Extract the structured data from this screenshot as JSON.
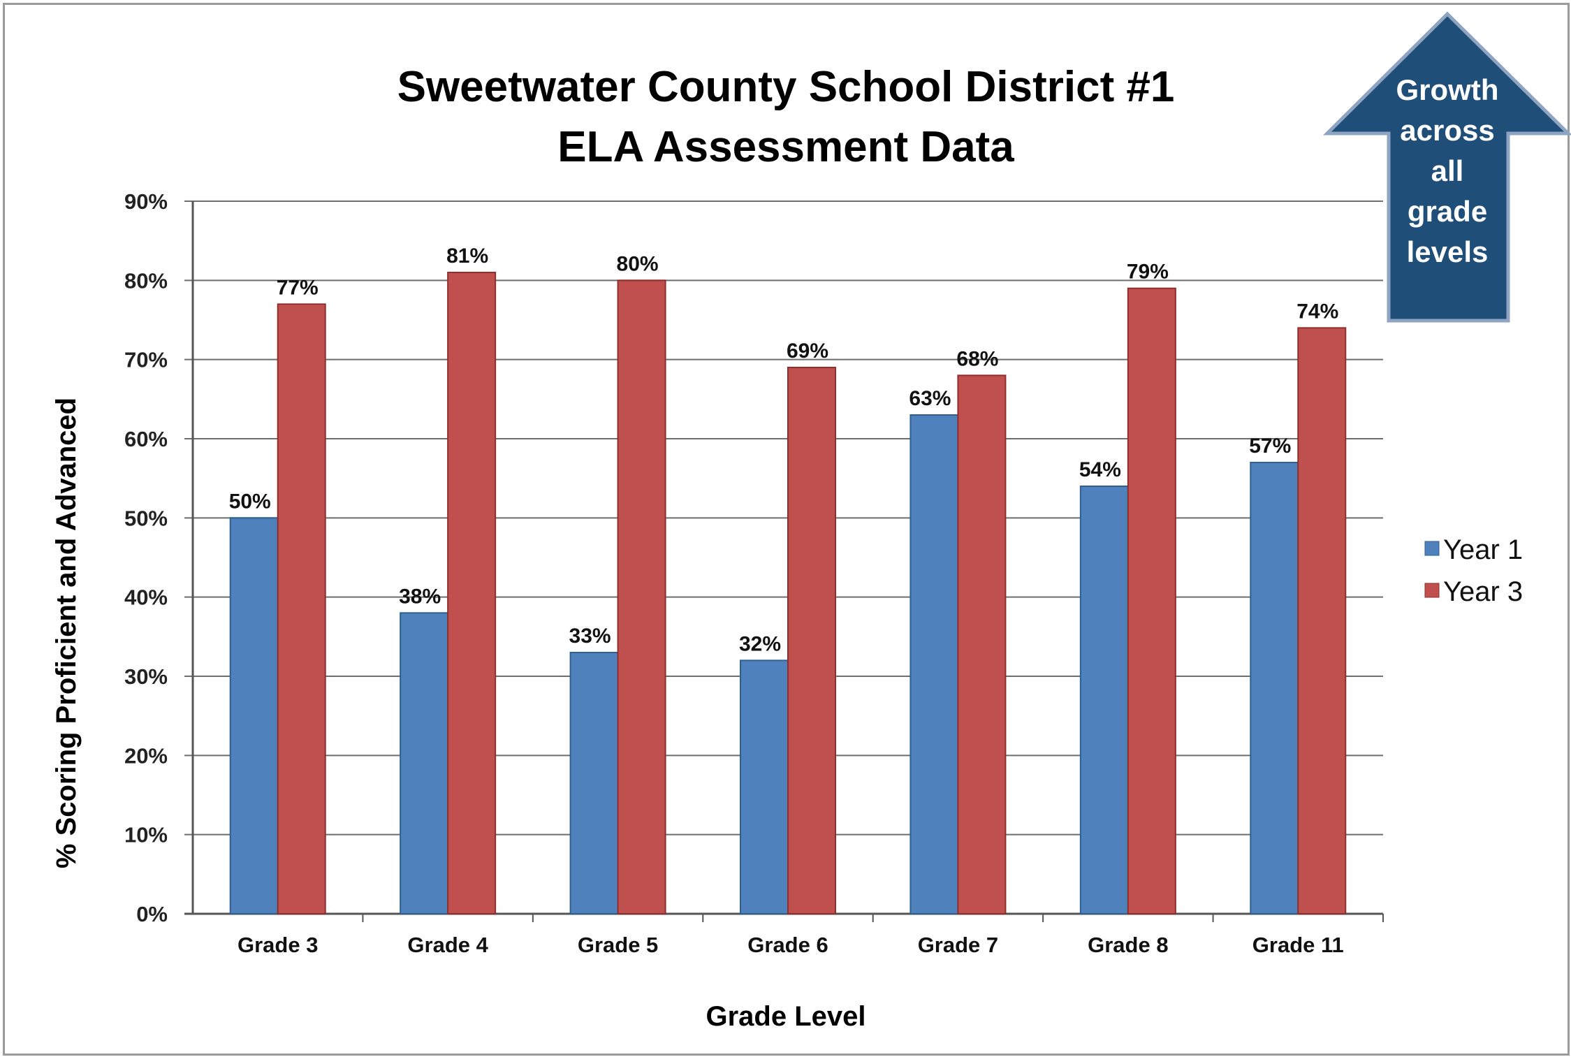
{
  "chart_data": {
    "type": "bar",
    "title_lines": [
      "Sweetwater County School District #1",
      "ELA Assessment Data"
    ],
    "categories": [
      "Grade 3",
      "Grade 4",
      "Grade 5",
      "Grade 6",
      "Grade 7",
      "Grade 8",
      "Grade 11"
    ],
    "series": [
      {
        "name": "Year 1",
        "values": [
          50,
          38,
          33,
          32,
          63,
          54,
          57
        ],
        "labels": [
          "50%",
          "38%",
          "33%",
          "32%",
          "63%",
          "54%",
          "57%"
        ],
        "color": "#4f81bd"
      },
      {
        "name": "Year 3",
        "values": [
          77,
          81,
          80,
          69,
          68,
          79,
          74
        ],
        "labels": [
          "77%",
          "81%",
          "80%",
          "69%",
          "68%",
          "79%",
          "74%"
        ],
        "color": "#c0504d"
      }
    ],
    "xlabel": "Grade Level",
    "ylabel": "% Scoring Proficient and Advanced",
    "ylim": [
      0,
      90
    ],
    "yticks": [
      "0%",
      "10%",
      "20%",
      "30%",
      "40%",
      "50%",
      "60%",
      "70%",
      "80%",
      "90%"
    ],
    "grid": true,
    "legend_position": "right",
    "annotation": {
      "lines": [
        "Growth",
        "across",
        "all",
        "grade",
        "levels"
      ],
      "color": "#1f4e79"
    }
  }
}
